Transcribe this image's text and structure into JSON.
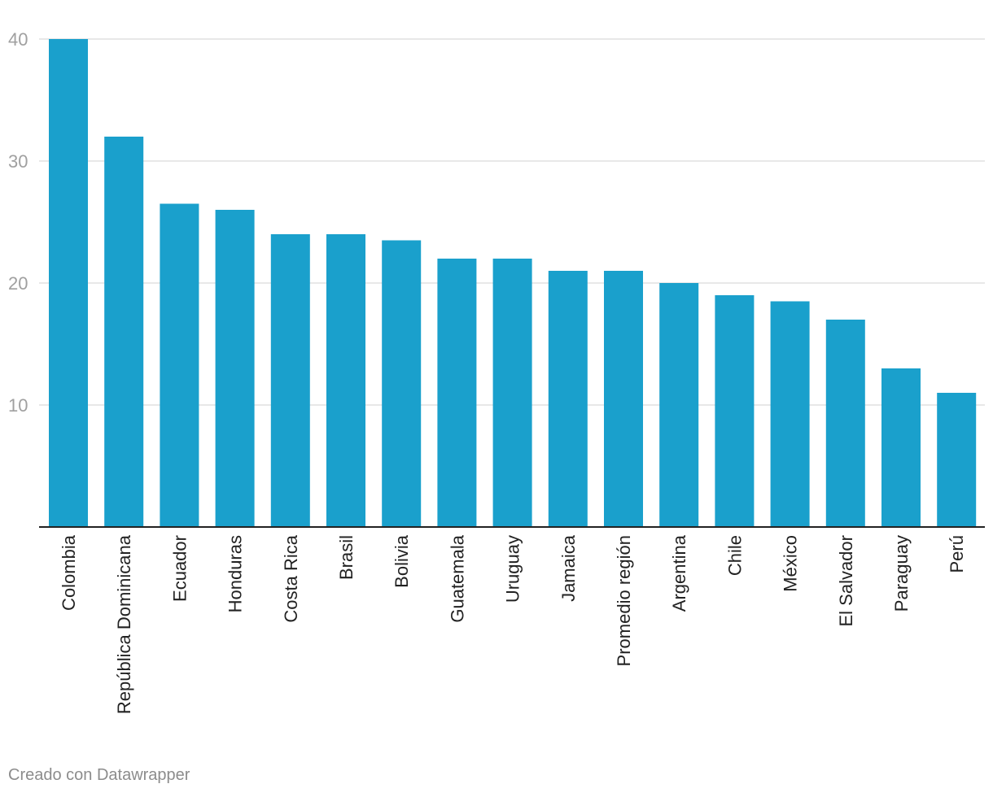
{
  "chart_data": {
    "type": "bar",
    "categories": [
      "Colombia",
      "República Dominicana",
      "Ecuador",
      "Honduras",
      "Costa Rica",
      "Brasil",
      "Bolivia",
      "Guatemala",
      "Uruguay",
      "Jamaica",
      "Promedio región",
      "Argentina",
      "Chile",
      "México",
      "El Salvador",
      "Paraguay",
      "Perú"
    ],
    "values": [
      40,
      32,
      26.5,
      26,
      24,
      24,
      23.5,
      22,
      22,
      21,
      21,
      20,
      19,
      18.5,
      17,
      13,
      11
    ],
    "ylim": [
      0,
      40
    ],
    "yticks": [
      10,
      20,
      30,
      40
    ],
    "grid": true,
    "bar_color": "#1aa0cc",
    "grid_color": "#e0e0e0",
    "axis_color": "#222222"
  },
  "footer": {
    "credit": "Creado con Datawrapper"
  }
}
